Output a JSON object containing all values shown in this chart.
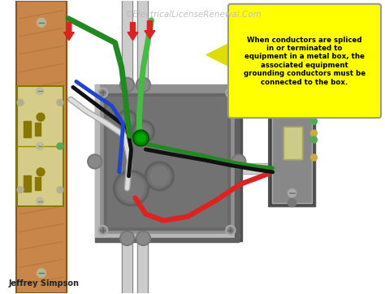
{
  "watermark": "©ElectricalLicenseRenewal.Com",
  "author": "Jeffrey Simpson",
  "bg_color": "#ffffff",
  "wood_color": "#c8864a",
  "wood_dark": "#a0622a",
  "box_color": "#909090",
  "box_inner": "#787878",
  "box_highlight": "#b8b8b8",
  "conduit_color": "#aaaaaa",
  "outlet_body": "#d4cc88",
  "outlet_dark": "#b8b060",
  "switch_body": "#444444",
  "switch_plate": "#888888",
  "wire_red": "#dd2222",
  "wire_black": "#111111",
  "wire_white": "#dddddd",
  "wire_green": "#228822",
  "wire_blue": "#2244cc",
  "wire_green2": "#44bb44",
  "annotation_bg": "#ffff00",
  "annotation_border": "#cccc00",
  "annotation_text": "When conductors are spliced\nin or terminated to\nequipment in a metal box, the\nassociated equipment\ngrounding conductors must be\nconnected to the box.",
  "arrow_color": "#dddd00"
}
